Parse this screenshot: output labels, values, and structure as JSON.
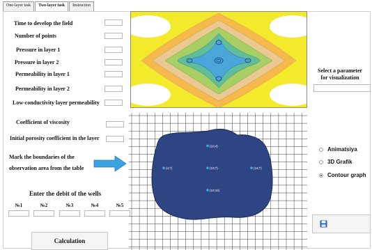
{
  "tabs": [
    {
      "label": "One-layer task",
      "active": false
    },
    {
      "label": "Two-layer task",
      "active": true
    },
    {
      "label": "Instruction",
      "active": false
    }
  ],
  "params": [
    {
      "label": "Time to develop the field",
      "value": ""
    },
    {
      "label": "Number of points",
      "value": ""
    },
    {
      "label": "Pressure in layer 1",
      "value": ""
    },
    {
      "label": "Pressure in layer 2",
      "value": ""
    },
    {
      "label": "Permeability in layer 1",
      "value": ""
    },
    {
      "label": "Permeability in layer 2",
      "value": ""
    },
    {
      "label": "Low-conductivity layer permeability",
      "value": ""
    }
  ],
  "viscosity": {
    "label": "Coefficient of viscosity",
    "value": ""
  },
  "porosity": {
    "label": "Initial porosity coefficient in the layer",
    "value": ""
  },
  "mark_boundaries": {
    "line1": "Mark the boundaries of the",
    "line2": "observation area from the table"
  },
  "wells": {
    "title": "Enter the debit of the wells",
    "labels": [
      "№1",
      "№2",
      "№3",
      "№4",
      "№5"
    ]
  },
  "calc_button": "Calculation",
  "select_param": {
    "line1": "Select a parameter",
    "line2": "for visualization"
  },
  "vis_options": [
    {
      "label": "Animatsiya",
      "selected": false
    },
    {
      "label": "3D Grafik",
      "selected": false
    },
    {
      "label": "Contour graph",
      "selected": true
    }
  ],
  "wells_points": [
    {
      "label": "(10;4)",
      "gx": 10,
      "gy": 4
    },
    {
      "label": "(4;7)",
      "gx": 4,
      "gy": 7
    },
    {
      "label": "(10;7)",
      "gx": 10,
      "gy": 7
    },
    {
      "label": "(16;7)",
      "gx": 16,
      "gy": 7
    },
    {
      "label": "(10;10)",
      "gx": 10,
      "gy": 10
    }
  ],
  "colors": {
    "contour_yellow": "#f2ea2a",
    "contour_orange": "#f6b94a",
    "contour_tan": "#e9c98f",
    "contour_green": "#a7cf63",
    "contour_teal": "#5fbd9b",
    "contour_blue": "#4aa5d8",
    "region": "#2f4583",
    "arrow": "#3aa3e0",
    "save_icon": "#2a5fb0"
  }
}
